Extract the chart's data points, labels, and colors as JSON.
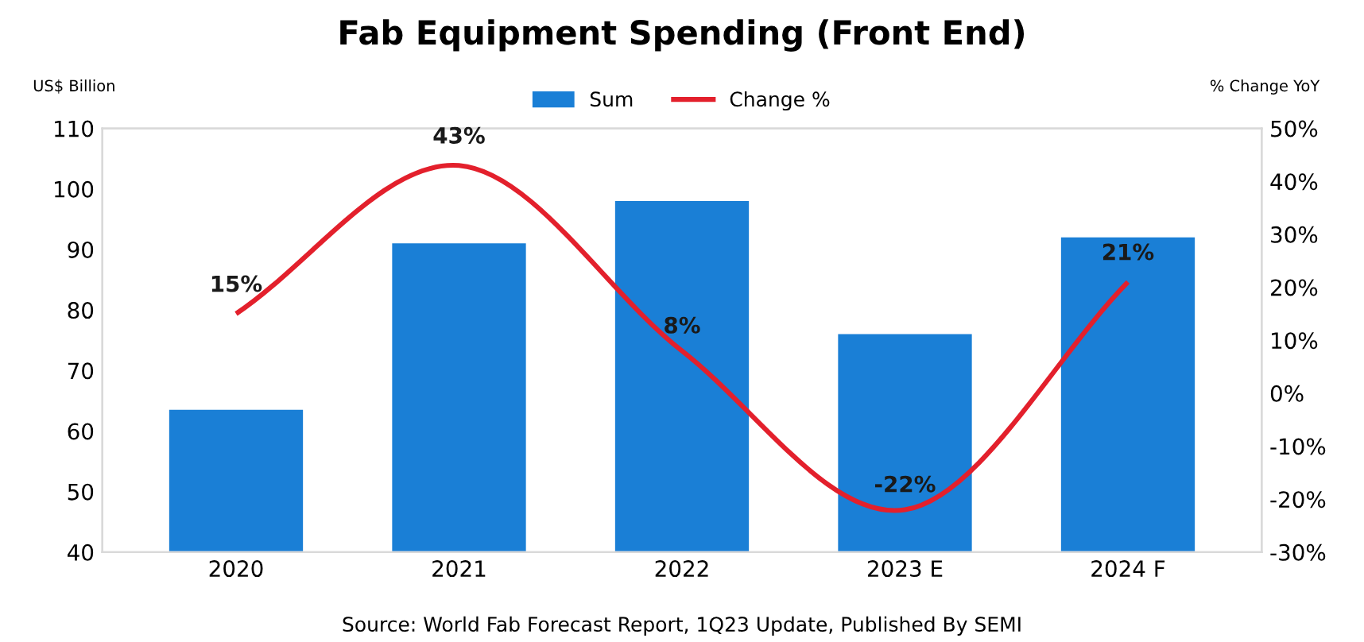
{
  "chart_data": {
    "type": "bar",
    "title": "Fab Equipment Spending (Front End)",
    "ylabel": "US$ Billion",
    "y2label": "% Change YoY",
    "categories": [
      "2020",
      "2021",
      "2022",
      "2023 E",
      "2024 F"
    ],
    "series": [
      {
        "name": "Sum",
        "color": "#1a7fd6",
        "values": [
          63.5,
          91,
          98,
          76,
          92
        ]
      },
      {
        "name": "Change %",
        "type": "line",
        "axis": "y2",
        "color": "#e3202c",
        "values": [
          15,
          43,
          8,
          -22,
          21
        ],
        "value_labels": [
          "15%",
          "43%",
          "8%",
          "-22%",
          "21%"
        ]
      }
    ],
    "ylim": [
      40,
      110
    ],
    "yticks": [
      40,
      50,
      60,
      70,
      80,
      90,
      100,
      110
    ],
    "y2lim": [
      -30,
      50
    ],
    "y2ticks": [
      {
        "value": -30,
        "label": "-30%"
      },
      {
        "value": -20,
        "label": "-20%"
      },
      {
        "value": -10,
        "label": "-10%"
      },
      {
        "value": 0,
        "label": "0%"
      },
      {
        "value": 10,
        "label": "10%"
      },
      {
        "value": 20,
        "label": "20%"
      },
      {
        "value": 30,
        "label": "30%"
      },
      {
        "value": 40,
        "label": "40%"
      },
      {
        "value": 50,
        "label": "50%"
      }
    ],
    "legend": "top",
    "grid": false,
    "marker": "none",
    "line_style": "solid",
    "annotations": [
      "Source: World Fab Forecast Report, 1Q23 Update, Published By SEMI"
    ]
  }
}
